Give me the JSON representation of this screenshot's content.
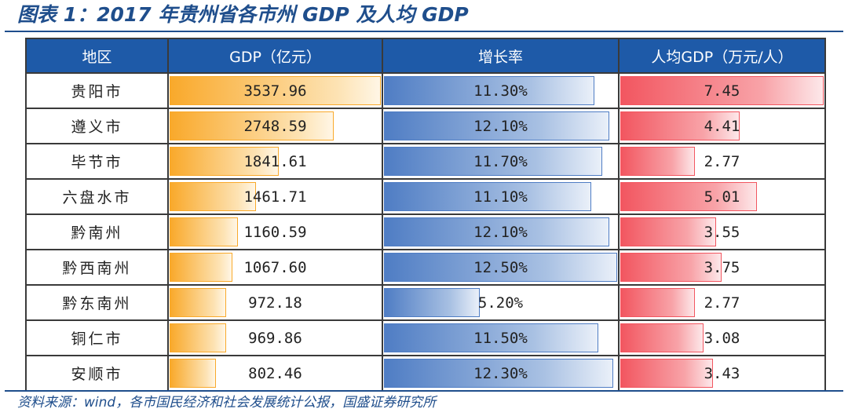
{
  "title": "图表 1：2017 年贵州省各市州 GDP 及人均 GDP",
  "source": "资料来源：wind，各市国民经济和社会发展统计公报，国盛证券研究所",
  "colors": {
    "gdp_bar": "#f9a92b",
    "growth_bar": "#4f7dc4",
    "percap_bar": "#f25660",
    "header_bg": "#1e5aa8",
    "accent": "#1f4e8c"
  },
  "chart_data": {
    "type": "table",
    "title": "2017 年贵州省各市州 GDP 及人均 GDP",
    "columns": [
      "地区",
      "GDP（亿元）",
      "增长率",
      "人均GDP（万元/人）"
    ],
    "rows": [
      {
        "region": "贵阳市",
        "gdp": 3537.96,
        "gdp_text": "3537.96",
        "growth": 11.3,
        "growth_text": "11.30%",
        "percap": 7.45,
        "percap_text": "7.45"
      },
      {
        "region": "遵义市",
        "gdp": 2748.59,
        "gdp_text": "2748.59",
        "growth": 12.1,
        "growth_text": "12.10%",
        "percap": 4.41,
        "percap_text": "4.41"
      },
      {
        "region": "毕节市",
        "gdp": 1841.61,
        "gdp_text": "1841.61",
        "growth": 11.7,
        "growth_text": "11.70%",
        "percap": 2.77,
        "percap_text": "2.77"
      },
      {
        "region": "六盘水市",
        "gdp": 1461.71,
        "gdp_text": "1461.71",
        "growth": 11.1,
        "growth_text": "11.10%",
        "percap": 5.01,
        "percap_text": "5.01"
      },
      {
        "region": "黔南州",
        "gdp": 1160.59,
        "gdp_text": "1160.59",
        "growth": 12.1,
        "growth_text": "12.10%",
        "percap": 3.55,
        "percap_text": "3.55"
      },
      {
        "region": "黔西南州",
        "gdp": 1067.6,
        "gdp_text": "1067.60",
        "growth": 12.5,
        "growth_text": "12.50%",
        "percap": 3.75,
        "percap_text": "3.75"
      },
      {
        "region": "黔东南州",
        "gdp": 972.18,
        "gdp_text": "972.18",
        "growth": 5.2,
        "growth_text": "5.20%",
        "percap": 2.77,
        "percap_text": "2.77"
      },
      {
        "region": "铜仁市",
        "gdp": 969.86,
        "gdp_text": "969.86",
        "growth": 11.5,
        "growth_text": "11.50%",
        "percap": 3.08,
        "percap_text": "3.08"
      },
      {
        "region": "安顺市",
        "gdp": 802.46,
        "gdp_text": "802.46",
        "growth": 12.3,
        "growth_text": "12.30%",
        "percap": 3.43,
        "percap_text": "3.43"
      }
    ]
  }
}
